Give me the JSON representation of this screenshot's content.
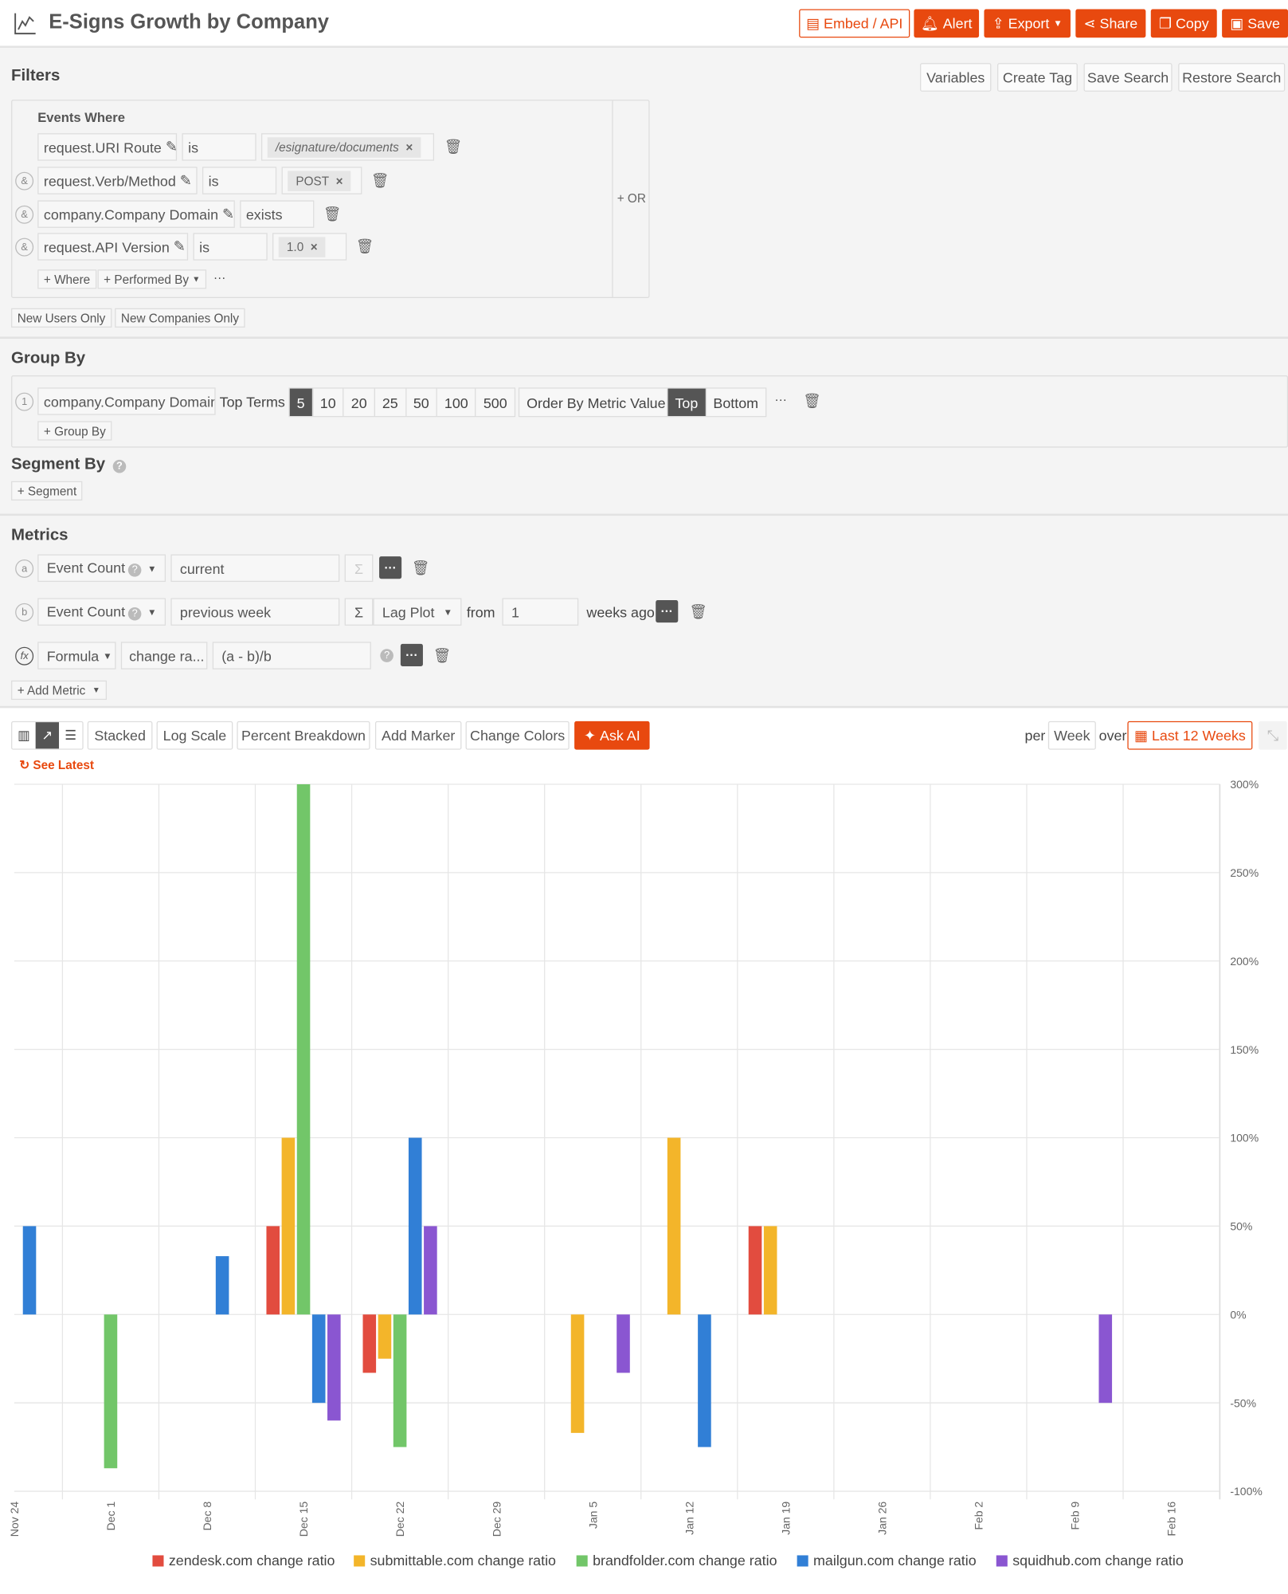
{
  "header": {
    "title": "E-Signs Growth by Company",
    "buttons": {
      "embed": "Embed / API",
      "alert": "Alert",
      "export": "Export",
      "share": "Share",
      "copy": "Copy",
      "save": "Save"
    }
  },
  "filters": {
    "title": "Filters",
    "actions": [
      "Variables",
      "Create Tag",
      "Save Search",
      "Restore Search"
    ],
    "events_where": "Events Where",
    "or_label": "+ OR",
    "rows": [
      {
        "field": "request.URI Route",
        "op": "is",
        "value": "/esignature/documents"
      },
      {
        "field": "request.Verb/Method",
        "op": "is",
        "value": "POST"
      },
      {
        "field": "company.Company Domain",
        "op": "exists",
        "value": ""
      },
      {
        "field": "request.API Version",
        "op": "is",
        "value": "1.0"
      }
    ],
    "connector": "&",
    "add_where": "+ Where",
    "performed_by": "+ Performed By",
    "more": "···",
    "new_users": "New Users Only",
    "new_companies": "New Companies Only"
  },
  "group_by": {
    "title": "Group By",
    "index": "1",
    "field": "company.Company Domain",
    "top_terms_label": "Top Terms",
    "terms": [
      "5",
      "10",
      "20",
      "25",
      "50",
      "100",
      "500"
    ],
    "selected_term": "5",
    "order_by": "Order By Metric Value",
    "top": "Top",
    "bottom": "Bottom",
    "selected_order": "Top",
    "more": "···",
    "add": "+ Group By"
  },
  "segment_by": {
    "title": "Segment By",
    "add": "+ Segment"
  },
  "metrics": {
    "title": "Metrics",
    "rows": [
      {
        "letter": "a",
        "type": "Event Count",
        "name": "current"
      },
      {
        "letter": "b",
        "type": "Event Count",
        "name": "previous week",
        "lag": "Lag Plot",
        "from": "from",
        "weeks": "1",
        "weeks_ago": "weeks ago"
      },
      {
        "letter": "fx",
        "type": "Formula",
        "name": "change ra...",
        "formula": "(a - b)/b"
      }
    ],
    "sigma": "Σ",
    "add": "+ Add Metric"
  },
  "toolbar": {
    "stacked": "Stacked",
    "log_scale": "Log Scale",
    "percent": "Percent Breakdown",
    "marker": "Add Marker",
    "colors": "Change Colors",
    "ask_ai": "Ask AI",
    "per": "per",
    "interval": "Week",
    "over": "over",
    "range": "Last 12 Weeks",
    "see_latest": "See Latest"
  },
  "colors": {
    "accent": "#e8490f"
  },
  "chart_data": {
    "type": "bar",
    "x": [
      "Nov 24",
      "Dec 1",
      "Dec 8",
      "Dec 15",
      "Dec 22",
      "Dec 29",
      "Jan 5",
      "Jan 12",
      "Jan 19",
      "Jan 26",
      "Feb 2",
      "Feb 9",
      "Feb 16"
    ],
    "yticks": [
      "300%",
      "250%",
      "200%",
      "150%",
      "100%",
      "50%",
      "0%",
      "-50%",
      "-100%"
    ],
    "ylim": [
      -100,
      300
    ],
    "grid": true,
    "legend": "bottom",
    "series": [
      {
        "name": "zendesk.com change ratio",
        "color": "#e24c3f",
        "values": [
          null,
          null,
          null,
          50,
          -33,
          null,
          null,
          null,
          50,
          null,
          null,
          null,
          null
        ]
      },
      {
        "name": "submittable.com change ratio",
        "color": "#f3b52a",
        "values": [
          null,
          null,
          null,
          100,
          -25,
          null,
          -67,
          100,
          50,
          null,
          null,
          null,
          null
        ]
      },
      {
        "name": "brandfolder.com change ratio",
        "color": "#72c669",
        "values": [
          null,
          -87,
          null,
          300,
          -75,
          null,
          null,
          null,
          null,
          null,
          null,
          null,
          null
        ]
      },
      {
        "name": "mailgun.com change ratio",
        "color": "#317fd6",
        "values": [
          50,
          null,
          33,
          -50,
          100,
          null,
          null,
          -75,
          null,
          null,
          null,
          null,
          null
        ]
      },
      {
        "name": "squidhub.com change ratio",
        "color": "#8a56d1",
        "values": [
          null,
          null,
          null,
          -60,
          50,
          null,
          -33,
          null,
          null,
          null,
          null,
          -50,
          null
        ]
      }
    ]
  }
}
